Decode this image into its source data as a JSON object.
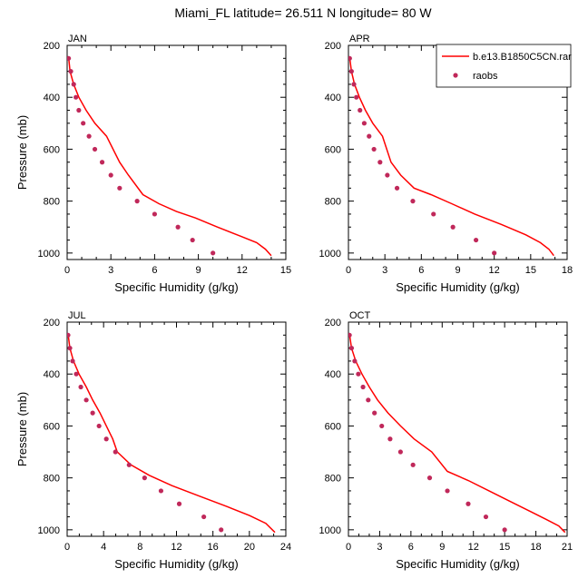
{
  "figure": {
    "title": "Miami_FL  latitude= 26.511 N longitude= 80 W"
  },
  "legend": {
    "placement": "top-right of upper-right panel",
    "model_label": "b.e13.B1850C5CN.rar",
    "obs_label": "raobs"
  },
  "colors": {
    "model_line": "#ff0000",
    "obs_marker": "#c0285a",
    "axes": "#000000"
  },
  "chart_data": [
    {
      "type": "line",
      "panel_label": "JAN",
      "xlabel": "Specific Humidity (g/kg)",
      "ylabel": "Pressure (mb)",
      "xlim": [
        0,
        15
      ],
      "ylim": [
        200,
        1025
      ],
      "y_inverted": true,
      "xticks": [
        0,
        3,
        6,
        9,
        12,
        15
      ],
      "yticks": [
        200,
        400,
        600,
        800,
        1000
      ],
      "series": [
        {
          "name": "b.e13.B1850C5CN.rar",
          "style": "line",
          "x": [
            0.1,
            0.2,
            0.45,
            0.8,
            1.3,
            1.9,
            2.7,
            3.6,
            4.2,
            5.2,
            6.3,
            7.5,
            8.8,
            10.3,
            11.9,
            13.0,
            13.6,
            14.0
          ],
          "y": [
            245,
            300,
            350,
            400,
            450,
            500,
            550,
            650,
            700,
            775,
            810,
            840,
            865,
            900,
            935,
            960,
            985,
            1010
          ]
        },
        {
          "name": "raobs",
          "style": "markers",
          "x": [
            0.1,
            0.25,
            0.45,
            0.6,
            0.8,
            1.1,
            1.5,
            1.9,
            2.4,
            3.0,
            3.6,
            4.8,
            6.0,
            7.6,
            8.6,
            10.0
          ],
          "y": [
            250,
            300,
            350,
            400,
            450,
            500,
            550,
            600,
            650,
            700,
            750,
            800,
            850,
            900,
            950,
            1000
          ]
        }
      ]
    },
    {
      "type": "line",
      "panel_label": "APR",
      "xlabel": "Specific Humidity (g/kg)",
      "ylabel": "",
      "xlim": [
        0,
        18
      ],
      "ylim": [
        200,
        1025
      ],
      "y_inverted": true,
      "xticks": [
        0,
        3,
        6,
        9,
        12,
        15,
        18
      ],
      "yticks": [
        200,
        400,
        600,
        800,
        1000
      ],
      "series": [
        {
          "name": "b.e13.B1850C5CN.rar",
          "style": "line",
          "x": [
            0.1,
            0.25,
            0.5,
            0.9,
            1.4,
            2.0,
            2.8,
            3.5,
            4.3,
            5.4,
            6.8,
            8.5,
            10.4,
            12.6,
            14.6,
            15.8,
            16.5,
            16.9
          ],
          "y": [
            245,
            300,
            350,
            400,
            450,
            500,
            550,
            650,
            700,
            750,
            775,
            810,
            850,
            890,
            930,
            960,
            985,
            1010
          ]
        },
        {
          "name": "raobs",
          "style": "markers",
          "x": [
            0.1,
            0.25,
            0.45,
            0.65,
            0.95,
            1.3,
            1.7,
            2.1,
            2.6,
            3.2,
            4.0,
            5.3,
            7.0,
            8.6,
            10.5,
            12.0
          ],
          "y": [
            250,
            300,
            350,
            400,
            450,
            500,
            550,
            600,
            650,
            700,
            750,
            800,
            850,
            900,
            950,
            1000
          ]
        }
      ]
    },
    {
      "type": "line",
      "panel_label": "JUL",
      "xlabel": "Specific Humidity (g/kg)",
      "ylabel": "Pressure (mb)",
      "xlim": [
        0,
        24
      ],
      "ylim": [
        200,
        1025
      ],
      "y_inverted": true,
      "xticks": [
        0,
        4,
        8,
        12,
        16,
        20,
        24
      ],
      "yticks": [
        200,
        400,
        600,
        800,
        1000
      ],
      "series": [
        {
          "name": "b.e13.B1850C5CN.rar",
          "style": "line",
          "x": [
            0.1,
            0.3,
            0.7,
            1.3,
            2.1,
            2.8,
            3.6,
            4.3,
            5.0,
            5.5,
            7.0,
            9.0,
            11.5,
            14.5,
            17.5,
            20.0,
            21.8,
            22.8
          ],
          "y": [
            245,
            300,
            350,
            400,
            450,
            500,
            550,
            600,
            650,
            700,
            750,
            790,
            830,
            870,
            910,
            945,
            975,
            1010
          ]
        },
        {
          "name": "raobs",
          "style": "markers",
          "x": [
            0.1,
            0.3,
            0.6,
            1.0,
            1.5,
            2.1,
            2.8,
            3.5,
            4.3,
            5.3,
            6.8,
            8.5,
            10.3,
            12.3,
            15.0,
            16.9
          ],
          "y": [
            250,
            300,
            350,
            400,
            450,
            500,
            550,
            600,
            650,
            700,
            750,
            800,
            850,
            900,
            950,
            1000
          ]
        }
      ]
    },
    {
      "type": "line",
      "panel_label": "OCT",
      "xlabel": "Specific Humidity (g/kg)",
      "ylabel": "",
      "xlim": [
        0,
        21
      ],
      "ylim": [
        200,
        1025
      ],
      "y_inverted": true,
      "xticks": [
        0,
        3,
        6,
        9,
        12,
        15,
        18,
        21
      ],
      "yticks": [
        200,
        400,
        600,
        800,
        1000
      ],
      "series": [
        {
          "name": "b.e13.B1850C5CN.rar",
          "style": "line",
          "x": [
            0.1,
            0.3,
            0.7,
            1.3,
            2.0,
            2.8,
            3.8,
            5.0,
            6.3,
            8.0,
            9.5,
            11.5,
            13.5,
            15.5,
            17.5,
            19.0,
            20.2,
            20.8
          ],
          "y": [
            245,
            300,
            350,
            400,
            450,
            500,
            550,
            600,
            650,
            700,
            775,
            810,
            850,
            890,
            930,
            960,
            985,
            1010
          ]
        },
        {
          "name": "raobs",
          "style": "markers",
          "x": [
            0.1,
            0.3,
            0.6,
            0.95,
            1.4,
            1.9,
            2.5,
            3.2,
            4.0,
            5.0,
            6.2,
            7.8,
            9.5,
            11.5,
            13.2,
            15.0
          ],
          "y": [
            250,
            300,
            350,
            400,
            450,
            500,
            550,
            600,
            650,
            700,
            750,
            800,
            850,
            900,
            950,
            1000
          ]
        }
      ]
    }
  ]
}
